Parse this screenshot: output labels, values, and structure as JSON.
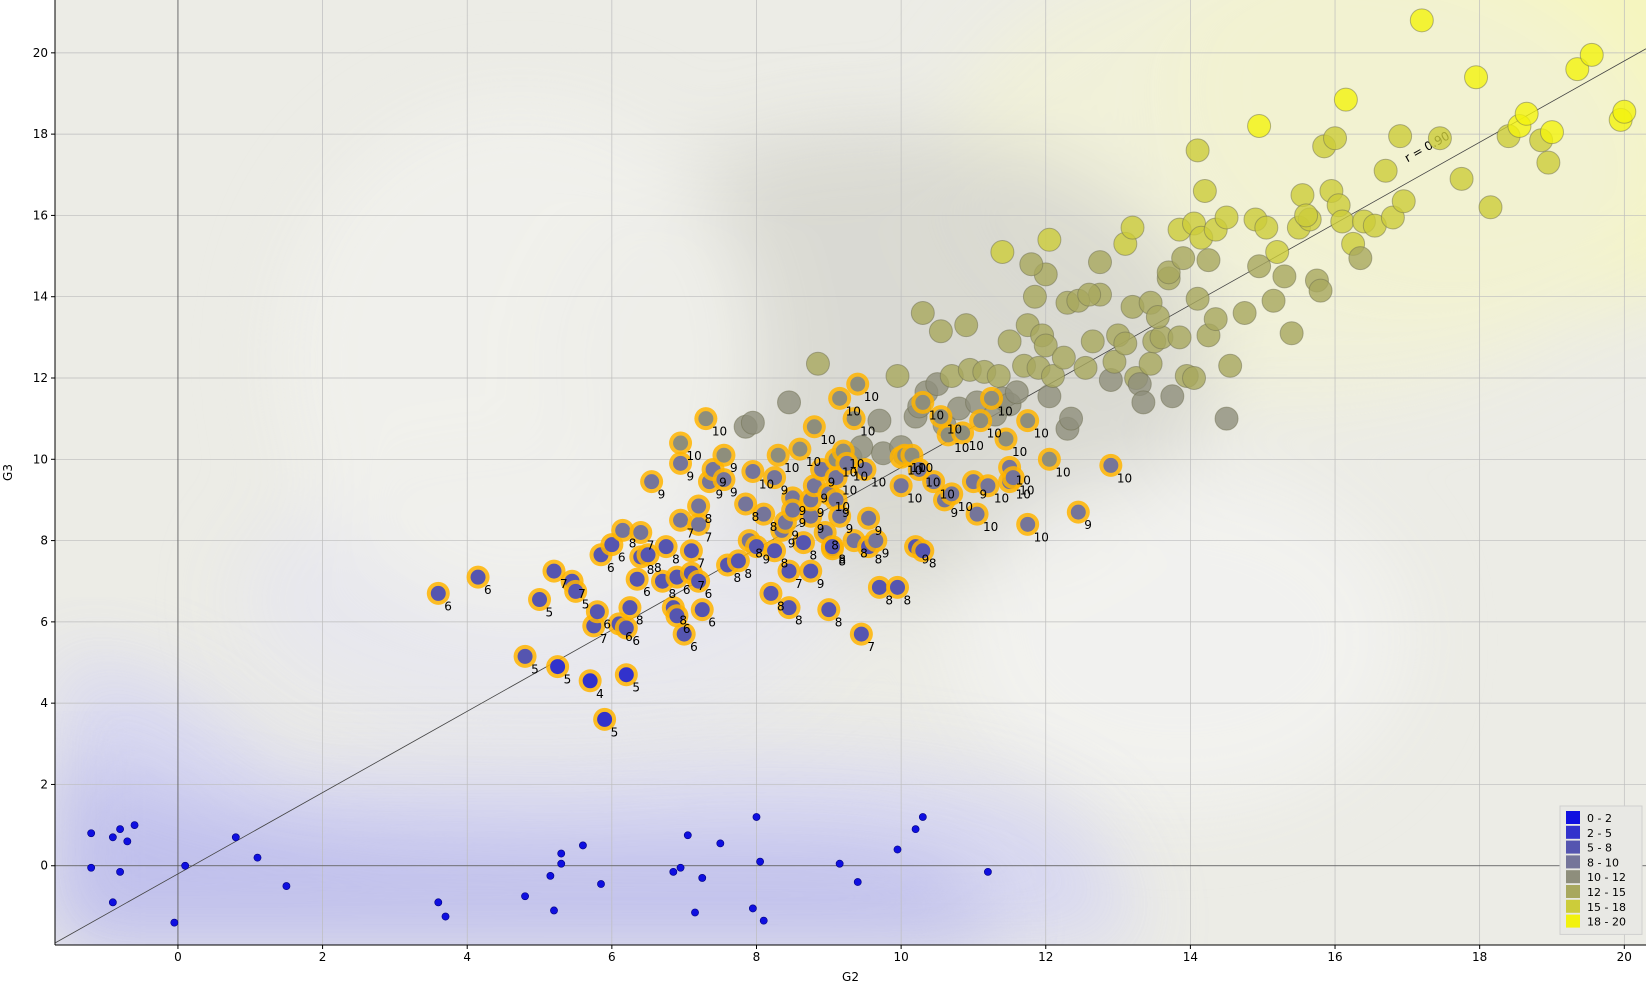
{
  "chart_data": {
    "type": "scatter",
    "title": "",
    "xlabel": "G2",
    "ylabel": "G3",
    "xlim": [
      -1.7,
      20.3
    ],
    "ylim": [
      -1.95,
      21.3
    ],
    "x_ticks": [
      0,
      2,
      4,
      6,
      8,
      10,
      12,
      14,
      16,
      18,
      20
    ],
    "y_ticks": [
      0,
      2,
      4,
      6,
      8,
      10,
      12,
      14,
      16,
      18,
      20
    ],
    "grid": true,
    "regression_line": {
      "label": "r = 0.90",
      "slope": 1.0,
      "intercept": -0.2
    },
    "legend": {
      "position": "bottom-right",
      "entries": [
        {
          "label": "0 - 2",
          "color": "#0f0fe0"
        },
        {
          "label": "2 - 5",
          "color": "#3232cc"
        },
        {
          "label": "5 - 8",
          "color": "#5555b0"
        },
        {
          "label": "8 - 10",
          "color": "#75759a"
        },
        {
          "label": "10 - 12",
          "color": "#8e8e7c"
        },
        {
          "label": "12 - 15",
          "color": "#a8a85e"
        },
        {
          "label": "15 - 18",
          "color": "#cccc3a"
        },
        {
          "label": "18 - 20",
          "color": "#f2f20e"
        }
      ]
    },
    "highlight_color": "#ffb400",
    "zero_points": [
      [
        -1.2,
        0.8
      ],
      [
        -0.9,
        0.7
      ],
      [
        -0.8,
        0.9
      ],
      [
        -0.7,
        0.6
      ],
      [
        -0.6,
        1.0
      ],
      [
        -1.2,
        -0.05
      ],
      [
        -0.8,
        -0.15
      ],
      [
        -0.9,
        -0.9
      ],
      [
        0.1,
        0.0
      ],
      [
        0.8,
        0.7
      ],
      [
        1.1,
        0.2
      ],
      [
        1.5,
        -0.5
      ],
      [
        -0.05,
        -1.4
      ],
      [
        3.6,
        -0.9
      ],
      [
        3.7,
        -1.25
      ],
      [
        4.8,
        -0.75
      ],
      [
        5.15,
        -0.25
      ],
      [
        5.2,
        -1.1
      ],
      [
        5.3,
        0.3
      ],
      [
        5.3,
        0.05
      ],
      [
        5.6,
        0.5
      ],
      [
        5.85,
        -0.45
      ],
      [
        6.85,
        -0.15
      ],
      [
        6.95,
        -0.05
      ],
      [
        7.05,
        0.75
      ],
      [
        7.15,
        -1.15
      ],
      [
        7.25,
        -0.3
      ],
      [
        7.5,
        0.55
      ],
      [
        7.95,
        -1.05
      ],
      [
        8.0,
        1.2
      ],
      [
        8.05,
        0.1
      ],
      [
        8.1,
        -1.35
      ],
      [
        9.15,
        0.05
      ],
      [
        9.4,
        -0.4
      ],
      [
        9.95,
        0.4
      ],
      [
        10.2,
        0.9
      ],
      [
        10.3,
        1.2
      ],
      [
        11.2,
        -0.15
      ]
    ],
    "labeled_points": [
      [
        3.6,
        6.7,
        6
      ],
      [
        4.15,
        7.1,
        6
      ],
      [
        4.8,
        5.15,
        5
      ],
      [
        5.0,
        6.55,
        5
      ],
      [
        5.2,
        7.25,
        7
      ],
      [
        5.25,
        4.9,
        5
      ],
      [
        5.45,
        7.0,
        7
      ],
      [
        5.5,
        6.75,
        5
      ],
      [
        5.7,
        4.55,
        4
      ],
      [
        5.75,
        5.9,
        7
      ],
      [
        5.8,
        6.25,
        6
      ],
      [
        5.85,
        7.65,
        6
      ],
      [
        5.9,
        3.6,
        5
      ],
      [
        6.0,
        7.9,
        6
      ],
      [
        6.1,
        5.95,
        6
      ],
      [
        6.15,
        8.25,
        8
      ],
      [
        6.2,
        4.7,
        5
      ],
      [
        6.2,
        5.85,
        6
      ],
      [
        6.25,
        6.35,
        8
      ],
      [
        6.35,
        7.05,
        6
      ],
      [
        6.4,
        8.2,
        7
      ],
      [
        6.4,
        7.6,
        8
      ],
      [
        6.5,
        7.65,
        8
      ],
      [
        6.55,
        9.45,
        9
      ],
      [
        6.7,
        7.0,
        8
      ],
      [
        6.75,
        7.85,
        8
      ],
      [
        6.85,
        6.35,
        8
      ],
      [
        6.9,
        6.15,
        6
      ],
      [
        6.9,
        7.1,
        6
      ],
      [
        6.95,
        8.5,
        7
      ],
      [
        6.95,
        9.9,
        9
      ],
      [
        6.95,
        10.4,
        10
      ],
      [
        7.0,
        5.7,
        6
      ],
      [
        7.1,
        7.75,
        7
      ],
      [
        7.1,
        7.2,
        7
      ],
      [
        7.2,
        8.4,
        7
      ],
      [
        7.2,
        7.0,
        6
      ],
      [
        7.2,
        8.85,
        8
      ],
      [
        7.25,
        6.3,
        6
      ],
      [
        7.3,
        11.0,
        10
      ],
      [
        7.35,
        9.45,
        9
      ],
      [
        7.4,
        9.75,
        9
      ],
      [
        7.55,
        10.1,
        9
      ],
      [
        7.55,
        9.5,
        9
      ],
      [
        7.6,
        7.4,
        8
      ],
      [
        7.75,
        7.5,
        8
      ],
      [
        7.85,
        8.9,
        8
      ],
      [
        7.9,
        8.0,
        8
      ],
      [
        7.95,
        9.7,
        10
      ],
      [
        8.0,
        7.85,
        9
      ],
      [
        8.1,
        8.65,
        8
      ],
      [
        8.2,
        6.7,
        8
      ],
      [
        8.25,
        9.55,
        9
      ],
      [
        8.25,
        7.75,
        8
      ],
      [
        8.3,
        10.1,
        10
      ],
      [
        8.35,
        8.25,
        9
      ],
      [
        8.4,
        8.45,
        9
      ],
      [
        8.45,
        6.35,
        8
      ],
      [
        8.45,
        7.25,
        7
      ],
      [
        8.5,
        9.05,
        9
      ],
      [
        8.5,
        8.75,
        9
      ],
      [
        8.6,
        10.25,
        10
      ],
      [
        8.65,
        7.95,
        8
      ],
      [
        8.75,
        8.6,
        9
      ],
      [
        8.75,
        9.0,
        9
      ],
      [
        8.75,
        7.25,
        9
      ],
      [
        8.8,
        9.35,
        9
      ],
      [
        8.8,
        10.8,
        10
      ],
      [
        8.9,
        9.75,
        9
      ],
      [
        8.95,
        8.2,
        8
      ],
      [
        9.0,
        6.3,
        8
      ],
      [
        9.0,
        9.15,
        10
      ],
      [
        9.05,
        7.8,
        8
      ],
      [
        9.05,
        7.85,
        8
      ],
      [
        9.1,
        10.0,
        10
      ],
      [
        9.1,
        9.55,
        10
      ],
      [
        9.1,
        9.0,
        9
      ],
      [
        9.15,
        8.6,
        9
      ],
      [
        9.15,
        11.5,
        10
      ],
      [
        9.2,
        10.2,
        10
      ],
      [
        9.25,
        9.9,
        10
      ],
      [
        9.35,
        11.0,
        10
      ],
      [
        9.35,
        8.0,
        8
      ],
      [
        9.4,
        11.85,
        10
      ],
      [
        9.45,
        5.7,
        7
      ],
      [
        9.5,
        9.75,
        10
      ],
      [
        9.55,
        8.55,
        9
      ],
      [
        9.55,
        7.85,
        8
      ],
      [
        9.65,
        8.0,
        9
      ],
      [
        9.7,
        6.85,
        8
      ],
      [
        9.95,
        6.85,
        8
      ],
      [
        10.0,
        9.35,
        10
      ],
      [
        10.0,
        10.05,
        10
      ],
      [
        10.05,
        10.1,
        10
      ],
      [
        10.15,
        10.1,
        10
      ],
      [
        10.2,
        7.85,
        9
      ],
      [
        10.25,
        9.75,
        10
      ],
      [
        10.3,
        11.4,
        10
      ],
      [
        10.3,
        7.75,
        8
      ],
      [
        10.45,
        9.45,
        10
      ],
      [
        10.55,
        11.05,
        10
      ],
      [
        10.6,
        9.0,
        9
      ],
      [
        10.65,
        10.6,
        10
      ],
      [
        10.7,
        9.15,
        10
      ],
      [
        10.85,
        10.65,
        10
      ],
      [
        11.0,
        9.45,
        9
      ],
      [
        11.05,
        8.65,
        10
      ],
      [
        11.1,
        10.95,
        10
      ],
      [
        11.2,
        9.35,
        10
      ],
      [
        11.25,
        11.5,
        10
      ],
      [
        11.45,
        10.5,
        10
      ],
      [
        11.5,
        9.45,
        10
      ],
      [
        11.5,
        9.8,
        10
      ],
      [
        11.55,
        9.55,
        10
      ],
      [
        11.75,
        8.4,
        10
      ],
      [
        11.75,
        10.95,
        10
      ],
      [
        12.05,
        10.0,
        10
      ],
      [
        12.45,
        8.7,
        9
      ],
      [
        12.9,
        9.85,
        10
      ]
    ],
    "points": [
      [
        7.85,
        10.8
      ],
      [
        7.95,
        10.9
      ],
      [
        8.45,
        11.4
      ],
      [
        8.85,
        12.35
      ],
      [
        9.3,
        10.05
      ],
      [
        9.45,
        10.3
      ],
      [
        9.7,
        10.95
      ],
      [
        9.75,
        10.15
      ],
      [
        9.95,
        12.05
      ],
      [
        10.0,
        10.3
      ],
      [
        10.2,
        11.05
      ],
      [
        10.25,
        11.3
      ],
      [
        10.3,
        13.6
      ],
      [
        10.35,
        11.65
      ],
      [
        10.5,
        11.85
      ],
      [
        10.55,
        13.15
      ],
      [
        10.6,
        10.85
      ],
      [
        10.7,
        12.05
      ],
      [
        10.8,
        11.25
      ],
      [
        10.9,
        13.3
      ],
      [
        10.95,
        12.2
      ],
      [
        11.05,
        11.4
      ],
      [
        11.15,
        12.15
      ],
      [
        11.3,
        11.1
      ],
      [
        11.35,
        12.05
      ],
      [
        11.4,
        11.5
      ],
      [
        11.5,
        12.9
      ],
      [
        11.5,
        11.35
      ],
      [
        11.6,
        11.65
      ],
      [
        11.7,
        12.3
      ],
      [
        11.75,
        13.3
      ],
      [
        11.85,
        14.0
      ],
      [
        11.9,
        12.25
      ],
      [
        11.95,
        13.05
      ],
      [
        12.0,
        12.8
      ],
      [
        12.0,
        14.55
      ],
      [
        12.05,
        11.55
      ],
      [
        12.05,
        15.4
      ],
      [
        12.1,
        12.05
      ],
      [
        12.25,
        12.5
      ],
      [
        12.3,
        10.75
      ],
      [
        12.35,
        11.0
      ],
      [
        12.55,
        12.25
      ],
      [
        12.65,
        12.9
      ],
      [
        12.75,
        14.05
      ],
      [
        12.9,
        11.95
      ],
      [
        12.95,
        12.4
      ],
      [
        13.0,
        13.05
      ],
      [
        13.1,
        12.85
      ],
      [
        13.2,
        13.75
      ],
      [
        13.25,
        12.0
      ],
      [
        13.3,
        11.85
      ],
      [
        13.35,
        11.4
      ],
      [
        13.45,
        12.35
      ],
      [
        13.5,
        12.9
      ],
      [
        13.6,
        13.0
      ],
      [
        13.7,
        14.45
      ],
      [
        13.75,
        11.55
      ],
      [
        13.85,
        13.0
      ],
      [
        13.95,
        12.05
      ],
      [
        14.05,
        12.0
      ],
      [
        14.1,
        13.95
      ],
      [
        14.25,
        13.05
      ],
      [
        14.35,
        13.45
      ],
      [
        14.55,
        12.3
      ],
      [
        14.5,
        11.0
      ],
      [
        11.4,
        15.1
      ],
      [
        11.8,
        14.8
      ],
      [
        12.3,
        13.85
      ],
      [
        12.45,
        13.9
      ],
      [
        12.6,
        14.05
      ],
      [
        12.75,
        14.85
      ],
      [
        13.1,
        15.3
      ],
      [
        13.2,
        15.7
      ],
      [
        13.45,
        13.85
      ],
      [
        13.55,
        13.5
      ],
      [
        13.7,
        14.6
      ],
      [
        13.85,
        15.65
      ],
      [
        13.9,
        14.95
      ],
      [
        14.05,
        15.8
      ],
      [
        14.15,
        15.45
      ],
      [
        14.2,
        16.6
      ],
      [
        14.25,
        14.9
      ],
      [
        14.35,
        15.65
      ],
      [
        14.5,
        15.95
      ],
      [
        14.1,
        17.6
      ],
      [
        14.75,
        13.6
      ],
      [
        14.9,
        15.9
      ],
      [
        14.95,
        14.75
      ],
      [
        14.95,
        18.2
      ],
      [
        15.05,
        15.7
      ],
      [
        15.15,
        13.9
      ],
      [
        15.2,
        15.1
      ],
      [
        15.3,
        14.5
      ],
      [
        15.4,
        13.1
      ],
      [
        15.5,
        15.7
      ],
      [
        15.55,
        16.5
      ],
      [
        15.65,
        15.9
      ],
      [
        15.75,
        14.4
      ],
      [
        15.8,
        14.15
      ],
      [
        15.85,
        17.7
      ],
      [
        15.95,
        16.6
      ],
      [
        16.0,
        17.9
      ],
      [
        16.05,
        16.25
      ],
      [
        16.1,
        15.85
      ],
      [
        16.15,
        18.85
      ],
      [
        16.25,
        15.3
      ],
      [
        16.35,
        14.95
      ],
      [
        16.4,
        15.85
      ],
      [
        16.55,
        15.75
      ],
      [
        16.7,
        17.1
      ],
      [
        16.8,
        15.95
      ],
      [
        16.95,
        16.35
      ],
      [
        17.2,
        20.8
      ],
      [
        17.45,
        17.9
      ],
      [
        17.75,
        16.9
      ],
      [
        17.95,
        19.4
      ],
      [
        18.15,
        16.2
      ],
      [
        18.4,
        17.95
      ],
      [
        18.55,
        18.2
      ],
      [
        18.65,
        18.5
      ],
      [
        18.85,
        17.85
      ],
      [
        18.95,
        17.3
      ],
      [
        19.0,
        18.05
      ],
      [
        19.35,
        19.6
      ],
      [
        19.55,
        19.95
      ],
      [
        19.95,
        18.35
      ],
      [
        20.0,
        18.55
      ],
      [
        15.6,
        16.0
      ],
      [
        16.9,
        17.95
      ]
    ]
  }
}
